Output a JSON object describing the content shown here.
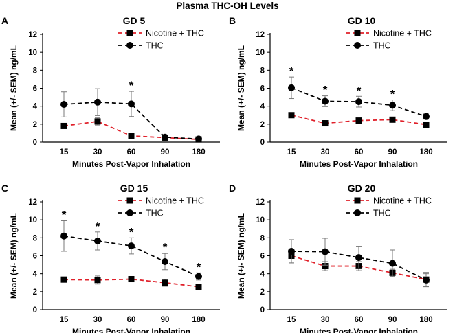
{
  "figure_title": "Plasma THC-OH Levels",
  "chart_data": [
    {
      "panel": "A",
      "type": "line",
      "title": "GD 5",
      "xlabel": "Minutes Post-Vapor Inhalation",
      "ylabel": "Mean (+/- SEM) ng/mL",
      "ylim": [
        0,
        12
      ],
      "yticks": [
        0,
        2,
        4,
        6,
        8,
        10,
        12
      ],
      "categories": [
        "15",
        "30",
        "60",
        "90",
        "180"
      ],
      "series": [
        {
          "name": "Nicotine + THC",
          "color": "#e0202a",
          "marker": "square",
          "values": [
            1.8,
            2.3,
            0.7,
            0.5,
            0.3
          ],
          "sem": [
            0.2,
            0.4,
            0.2,
            0.1,
            0.1
          ]
        },
        {
          "name": "THC",
          "color": "#000000",
          "marker": "circle",
          "values": [
            4.2,
            4.45,
            4.25,
            0.55,
            0.35
          ],
          "sem": [
            1.4,
            1.5,
            1.4,
            0.15,
            0.15
          ]
        }
      ],
      "significance": [
        "",
        "",
        "*",
        "",
        ""
      ],
      "legend_position": "top-right"
    },
    {
      "panel": "B",
      "type": "line",
      "title": "GD 10",
      "xlabel": "Minutes Post-Vapor Inhalation",
      "ylabel": "Mean (+/- SEM) ng/mL",
      "ylim": [
        0,
        12
      ],
      "yticks": [
        0,
        2,
        4,
        6,
        8,
        10,
        12
      ],
      "categories": [
        "15",
        "30",
        "60",
        "90",
        "180"
      ],
      "series": [
        {
          "name": "Nicotine + THC",
          "color": "#e0202a",
          "marker": "square",
          "values": [
            3.0,
            2.1,
            2.4,
            2.5,
            1.95
          ],
          "sem": [
            0.2,
            0.15,
            0.15,
            0.2,
            0.2
          ]
        },
        {
          "name": "THC",
          "color": "#000000",
          "marker": "circle",
          "values": [
            6.05,
            4.55,
            4.5,
            4.1,
            2.85
          ],
          "sem": [
            1.2,
            0.6,
            0.6,
            0.6,
            0.3
          ]
        }
      ],
      "significance": [
        "*",
        "*",
        "*",
        "*",
        ""
      ],
      "legend_position": "top-right"
    },
    {
      "panel": "C",
      "type": "line",
      "title": "GD 15",
      "xlabel": "Minutes Post-Vapor Inhalation",
      "ylabel": "Mean (+/- SEM) ng/mL",
      "ylim": [
        0,
        12
      ],
      "yticks": [
        0,
        2,
        4,
        6,
        8,
        10,
        12
      ],
      "categories": [
        "15",
        "30",
        "60",
        "90",
        "180"
      ],
      "series": [
        {
          "name": "Nicotine + THC",
          "color": "#e0202a",
          "marker": "square",
          "values": [
            3.35,
            3.3,
            3.4,
            3.0,
            2.55
          ],
          "sem": [
            0.2,
            0.45,
            0.3,
            0.4,
            0.2
          ]
        },
        {
          "name": "THC",
          "color": "#000000",
          "marker": "circle",
          "values": [
            8.2,
            7.65,
            7.1,
            5.35,
            3.7
          ],
          "sem": [
            1.7,
            1.0,
            0.9,
            0.9,
            0.4
          ]
        }
      ],
      "significance": [
        "*",
        "*",
        "*",
        "*",
        "*"
      ],
      "legend_position": "top-right"
    },
    {
      "panel": "D",
      "type": "line",
      "title": "GD 20",
      "xlabel": "Minutes Post-Vapor Inhalation",
      "ylabel": "Mean (+/- SEM) ng/mL",
      "ylim": [
        0,
        12
      ],
      "yticks": [
        0,
        2,
        4,
        6,
        8,
        10,
        12
      ],
      "categories": [
        "15",
        "30",
        "60",
        "90",
        "180"
      ],
      "series": [
        {
          "name": "Nicotine + THC",
          "color": "#e0202a",
          "marker": "square",
          "values": [
            6.0,
            4.85,
            4.85,
            4.1,
            3.35
          ],
          "sem": [
            0.7,
            0.5,
            0.5,
            0.4,
            0.8
          ]
        },
        {
          "name": "THC",
          "color": "#000000",
          "marker": "circle",
          "values": [
            6.5,
            6.45,
            5.8,
            5.15,
            3.3
          ],
          "sem": [
            1.3,
            1.5,
            1.2,
            1.5,
            0.7
          ]
        }
      ],
      "significance": [
        "",
        "",
        "",
        "",
        ""
      ],
      "legend_position": "top-right"
    }
  ]
}
